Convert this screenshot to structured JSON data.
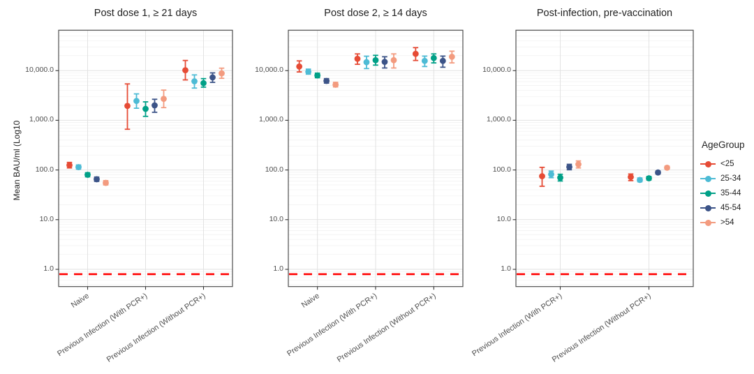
{
  "figure": {
    "background": "#FFFFFF"
  },
  "legend": {
    "title": "AgeGroup",
    "position": "right",
    "items": [
      {
        "label": "<25",
        "color": "#E64B35"
      },
      {
        "label": "25-34",
        "color": "#4DBBD5"
      },
      {
        "label": "35-44",
        "color": "#00A087"
      },
      {
        "label": "45-54",
        "color": "#3C5488"
      },
      {
        "label": ">54",
        "color": "#F39B7F"
      }
    ]
  },
  "chart_data": {
    "type": "scatter",
    "subtype": "point-range-errorbar",
    "scale_y": "log10",
    "ylabel": "Mean BAU/ml (Log10",
    "xlabel": "",
    "grid": "on",
    "legend_position": "right",
    "ylim": [
      0.45,
      65000
    ],
    "y_ticks": [
      {
        "label": "10,000.0",
        "value": 10000
      },
      {
        "label": "1,000.0",
        "value": 1000
      },
      {
        "label": "100.0",
        "value": 100
      },
      {
        "label": "10.0",
        "value": 10
      },
      {
        "label": "1.0",
        "value": 1
      }
    ],
    "reference_line": {
      "value": 0.8,
      "color": "#FF0000",
      "style": "dashed"
    },
    "age_groups": [
      "<25",
      "25-34",
      "35-44",
      "45-54",
      ">54"
    ],
    "panels": [
      {
        "title": "Post dose 1, ≥ 21 days",
        "categories": [
          "Naive",
          "Previous Infection (With PCR+)",
          "Previous Infection (Without PCR+)"
        ],
        "series": [
          {
            "category": "Naive",
            "points": [
              {
                "group": "<25",
                "mean": 125,
                "lo": 110,
                "hi": 142
              },
              {
                "group": "25-34",
                "mean": 114,
                "lo": 104,
                "hi": 126
              },
              {
                "group": "35-44",
                "mean": 80,
                "lo": 73,
                "hi": 88
              },
              {
                "group": "45-54",
                "mean": 65,
                "lo": 59,
                "hi": 72
              },
              {
                "group": ">54",
                "mean": 55,
                "lo": 50,
                "hi": 61
              }
            ]
          },
          {
            "category": "Previous Infection (With PCR+)",
            "points": [
              {
                "group": "<25",
                "mean": 1950,
                "lo": 660,
                "hi": 5400
              },
              {
                "group": "25-34",
                "mean": 2450,
                "lo": 1750,
                "hi": 3400
              },
              {
                "group": "35-44",
                "mean": 1700,
                "lo": 1200,
                "hi": 2350
              },
              {
                "group": "45-54",
                "mean": 2000,
                "lo": 1450,
                "hi": 2650
              },
              {
                "group": ">54",
                "mean": 2700,
                "lo": 1800,
                "hi": 4050
              }
            ]
          },
          {
            "category": "Previous Infection (Without PCR+)",
            "points": [
              {
                "group": "<25",
                "mean": 10200,
                "lo": 6500,
                "hi": 16000
              },
              {
                "group": "25-34",
                "mean": 6100,
                "lo": 4450,
                "hi": 8200
              },
              {
                "group": "35-44",
                "mean": 5600,
                "lo": 4650,
                "hi": 6900
              },
              {
                "group": "45-54",
                "mean": 7300,
                "lo": 5800,
                "hi": 9000
              },
              {
                "group": ">54",
                "mean": 8800,
                "lo": 7000,
                "hi": 11200
              }
            ]
          }
        ]
      },
      {
        "title": "Post dose 2, ≥ 14 days",
        "categories": [
          "Naive",
          "Previous Infection (With PCR+)",
          "Previous Infection (Without PCR+)"
        ],
        "series": [
          {
            "category": "Naive",
            "points": [
              {
                "group": "<25",
                "mean": 12100,
                "lo": 9400,
                "hi": 15700
              },
              {
                "group": "25-34",
                "mean": 9500,
                "lo": 8500,
                "hi": 10700
              },
              {
                "group": "35-44",
                "mean": 8000,
                "lo": 7200,
                "hi": 8900
              },
              {
                "group": "45-54",
                "mean": 6200,
                "lo": 5600,
                "hi": 6900
              },
              {
                "group": ">54",
                "mean": 5200,
                "lo": 4700,
                "hi": 5800
              }
            ]
          },
          {
            "category": "Previous Infection (With PCR+)",
            "points": [
              {
                "group": "<25",
                "mean": 17300,
                "lo": 13400,
                "hi": 21700
              },
              {
                "group": "25-34",
                "mean": 14800,
                "lo": 11000,
                "hi": 19500
              },
              {
                "group": "35-44",
                "mean": 16200,
                "lo": 12900,
                "hi": 20300
              },
              {
                "group": "45-54",
                "mean": 15000,
                "lo": 11300,
                "hi": 19000
              },
              {
                "group": ">54",
                "mean": 16200,
                "lo": 11300,
                "hi": 21700
              }
            ]
          },
          {
            "category": "Previous Infection (Without PCR+)",
            "points": [
              {
                "group": "<25",
                "mean": 21800,
                "lo": 16000,
                "hi": 29000
              },
              {
                "group": "25-34",
                "mean": 15700,
                "lo": 12100,
                "hi": 19600
              },
              {
                "group": "35-44",
                "mean": 17900,
                "lo": 14300,
                "hi": 21700
              },
              {
                "group": "45-54",
                "mean": 15700,
                "lo": 11700,
                "hi": 19600
              },
              {
                "group": ">54",
                "mean": 19000,
                "lo": 14300,
                "hi": 24600
              }
            ]
          }
        ]
      },
      {
        "title": "Post-infection, pre-vaccination",
        "categories": [
          "Previous Infection (With PCR+)",
          "Previous Infection (Without PCR+)"
        ],
        "series": [
          {
            "category": "Previous Infection (With PCR+)",
            "points": [
              {
                "group": "<25",
                "mean": 75,
                "lo": 47,
                "hi": 113
              },
              {
                "group": "25-34",
                "mean": 82,
                "lo": 70,
                "hi": 95
              },
              {
                "group": "35-44",
                "mean": 70,
                "lo": 60,
                "hi": 82
              },
              {
                "group": "45-54",
                "mean": 115,
                "lo": 101,
                "hi": 130
              },
              {
                "group": ">54",
                "mean": 130,
                "lo": 110,
                "hi": 152
              }
            ]
          },
          {
            "category": "Previous Infection (Without PCR+)",
            "points": [
              {
                "group": "<25",
                "mean": 72,
                "lo": 61,
                "hi": 83
              },
              {
                "group": "25-34",
                "mean": 63,
                "lo": 58,
                "hi": 69
              },
              {
                "group": "35-44",
                "mean": 68,
                "lo": 63,
                "hi": 74
              },
              {
                "group": "45-54",
                "mean": 89,
                "lo": 83,
                "hi": 95
              },
              {
                "group": ">54",
                "mean": 111,
                "lo": 104,
                "hi": 119
              }
            ]
          }
        ]
      }
    ]
  }
}
